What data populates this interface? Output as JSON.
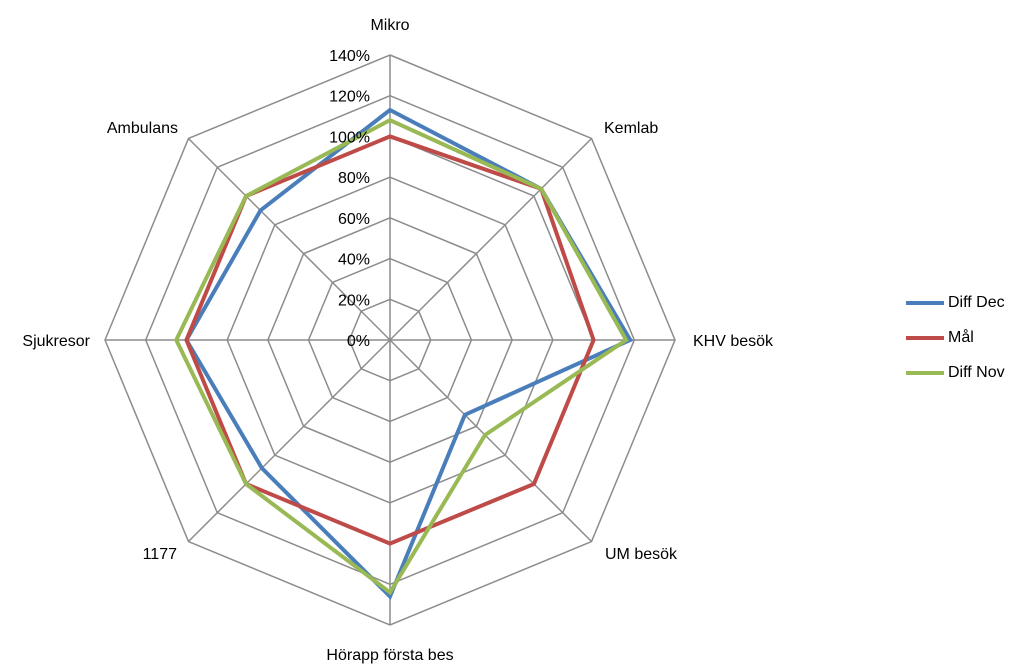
{
  "chart_data": {
    "type": "radar",
    "categories": [
      "Mikro",
      "Kemlab",
      "KHV besök",
      "UM besök",
      "Hörapp första bes",
      "1177",
      "Sjukresor",
      "Ambulans"
    ],
    "ticks": [
      "0%",
      "20%",
      "40%",
      "60%",
      "80%",
      "100%",
      "120%",
      "140%"
    ],
    "range": [
      0,
      140
    ],
    "legend_position": "right",
    "series": [
      {
        "name": "Diff Dec",
        "color": "#4a7ebb",
        "values": [
          113,
          105,
          118,
          52,
          126,
          89,
          100,
          90
        ]
      },
      {
        "name": "Mål",
        "color": "#be4b48",
        "values": [
          100,
          105,
          100,
          100,
          100,
          100,
          100,
          100
        ]
      },
      {
        "name": "Diff Nov",
        "color": "#98b954",
        "values": [
          108,
          105,
          116,
          66,
          124,
          100,
          105,
          100
        ]
      }
    ]
  }
}
